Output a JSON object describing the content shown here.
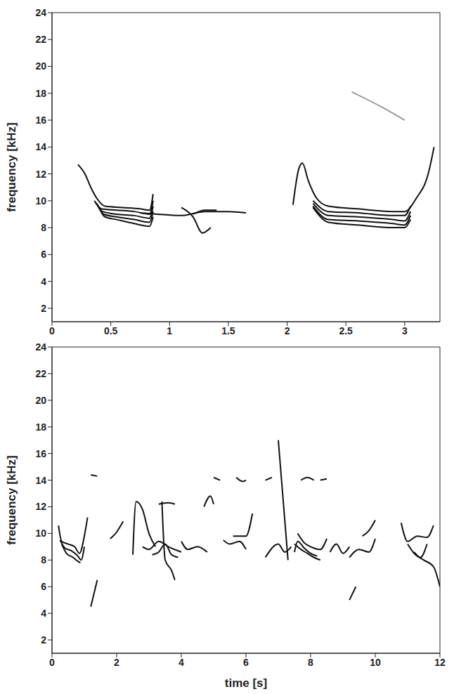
{
  "chart_data": [
    {
      "type": "line",
      "y_label": "frequency [kHz]",
      "xlim": [
        0,
        3.3
      ],
      "ylim": [
        1,
        24
      ],
      "xticks": [
        0,
        0.5,
        1,
        1.5,
        2,
        2.5,
        3
      ],
      "yticks": [
        2,
        4,
        6,
        8,
        10,
        12,
        14,
        16,
        18,
        20,
        22,
        24
      ],
      "color": "#111111",
      "series": [
        {
          "x": [
            0.22,
            0.28,
            0.33,
            0.38,
            0.45,
            0.6,
            0.75,
            0.83,
            0.86
          ],
          "values": [
            12.7,
            12,
            11,
            10.2,
            9.6,
            9.5,
            9.4,
            9.3,
            10.5
          ]
        },
        {
          "x": [
            0.36,
            0.42,
            0.55,
            0.7,
            0.83,
            0.86
          ],
          "values": [
            10,
            9.4,
            9.3,
            9.2,
            9.0,
            10
          ]
        },
        {
          "x": [
            0.37,
            0.43,
            0.55,
            0.7,
            0.83,
            0.86
          ],
          "values": [
            9.9,
            9.2,
            9.0,
            8.9,
            8.7,
            9.6
          ]
        },
        {
          "x": [
            0.38,
            0.44,
            0.55,
            0.7,
            0.83,
            0.86
          ],
          "values": [
            9.8,
            9.0,
            8.8,
            8.6,
            8.4,
            9.2
          ]
        },
        {
          "x": [
            0.39,
            0.45,
            0.55,
            0.7,
            0.83,
            0.86
          ],
          "values": [
            9.7,
            8.8,
            8.6,
            8.3,
            8.1,
            8.8
          ]
        },
        {
          "x": [
            0.75,
            0.9,
            1.1,
            1.3,
            1.5,
            1.65
          ],
          "values": [
            9.1,
            9.0,
            8.9,
            9.2,
            9.2,
            9.1
          ]
        },
        {
          "x": [
            1.1,
            1.2,
            1.28,
            1.35
          ],
          "values": [
            9.5,
            8.8,
            7.6,
            8.0
          ]
        },
        {
          "x": [
            1.2,
            1.3,
            1.4
          ],
          "values": [
            9.0,
            9.3,
            9.3
          ]
        },
        {
          "x": [
            2.05,
            2.1,
            2.13,
            2.18,
            2.25,
            2.35,
            2.6,
            2.9,
            3.0,
            3.1,
            3.2,
            3.25
          ],
          "values": [
            9.7,
            12.4,
            12.8,
            11.5,
            10.2,
            9.6,
            9.4,
            9.2,
            9.2,
            10.2,
            12,
            14
          ]
        },
        {
          "x": [
            2.22,
            2.35,
            2.6,
            2.9,
            3.0,
            3.05
          ],
          "values": [
            10.0,
            9.2,
            9.1,
            8.9,
            8.9,
            9.6
          ]
        },
        {
          "x": [
            2.22,
            2.35,
            2.6,
            2.9,
            3.0,
            3.05
          ],
          "values": [
            9.8,
            8.9,
            8.8,
            8.6,
            8.5,
            9.2
          ]
        },
        {
          "x": [
            2.22,
            2.35,
            2.6,
            2.9,
            3.0,
            3.05
          ],
          "values": [
            9.6,
            8.6,
            8.5,
            8.3,
            8.2,
            8.9
          ]
        },
        {
          "x": [
            2.22,
            2.35,
            2.6,
            2.9,
            3.0,
            3.05
          ],
          "values": [
            9.5,
            8.4,
            8.2,
            8.0,
            8.0,
            8.6
          ]
        },
        {
          "x": [
            2.55,
            2.8,
            3.0
          ],
          "values": [
            18.1,
            17.0,
            16.0
          ],
          "color": "#999999"
        }
      ]
    },
    {
      "type": "line",
      "x_label": "time [s]",
      "y_label": "frequency [kHz]",
      "xlim": [
        0,
        12
      ],
      "ylim": [
        1,
        24
      ],
      "xticks": [
        0,
        2,
        4,
        6,
        8,
        10,
        12
      ],
      "yticks": [
        2,
        4,
        6,
        8,
        10,
        12,
        14,
        16,
        18,
        20,
        22,
        24
      ],
      "color": "#111111",
      "series": [
        {
          "x": [
            0.2,
            0.3,
            0.5,
            0.7,
            0.85,
            1.0,
            1.1
          ],
          "values": [
            10.6,
            9.4,
            9.2,
            9.0,
            8.5,
            9.8,
            11.2
          ]
        },
        {
          "x": [
            0.25,
            0.4,
            0.6,
            0.8,
            0.9,
            1.0
          ],
          "values": [
            9.5,
            8.9,
            8.7,
            8.3,
            8.0,
            9.0
          ]
        },
        {
          "x": [
            0.3,
            0.45,
            0.65,
            0.8,
            0.88
          ],
          "values": [
            9.2,
            8.5,
            8.2,
            7.9,
            7.8
          ]
        },
        {
          "x": [
            1.8,
            2.0,
            2.2
          ],
          "values": [
            9.6,
            10.1,
            10.9
          ]
        },
        {
          "x": [
            2.5,
            2.6,
            2.8,
            3.0,
            3.2
          ],
          "values": [
            8.4,
            12.4,
            11.8,
            10,
            9
          ]
        },
        {
          "x": [
            2.8,
            3.0,
            3.3,
            3.6,
            4.0
          ],
          "values": [
            9.0,
            8.8,
            9.4,
            9.0,
            8.6
          ]
        },
        {
          "x": [
            3.1,
            3.3,
            3.5,
            3.7,
            3.9
          ],
          "values": [
            8.4,
            8.6,
            9.2,
            8.4,
            8.2
          ]
        },
        {
          "x": [
            3.3,
            3.6,
            3.8
          ],
          "values": [
            12.2,
            12.3,
            12.2
          ]
        },
        {
          "x": [
            3.4,
            3.5,
            3.7,
            3.8
          ],
          "values": [
            12.4,
            8,
            7.2,
            6.5
          ]
        },
        {
          "x": [
            4.0,
            4.2,
            4.5,
            4.8
          ],
          "values": [
            9.4,
            8.8,
            9.0,
            8.6
          ]
        },
        {
          "x": [
            4.7,
            4.9,
            5.0
          ],
          "values": [
            12.0,
            12.8,
            12.2
          ]
        },
        {
          "x": [
            5.3,
            5.5,
            5.8,
            6.0
          ],
          "values": [
            9.5,
            9.2,
            9.4,
            8.8
          ]
        },
        {
          "x": [
            5.6,
            5.8,
            6.0,
            6.2
          ],
          "values": [
            9.8,
            9.8,
            9.8,
            11.5
          ]
        },
        {
          "x": [
            5.0,
            5.2
          ],
          "values": [
            14.2,
            14.0
          ]
        },
        {
          "x": [
            5.7,
            5.9,
            6.0
          ],
          "values": [
            14.2,
            13.9,
            14.0
          ]
        },
        {
          "x": [
            1.2,
            1.4
          ],
          "values": [
            14.4,
            14.3
          ]
        },
        {
          "x": [
            6.6,
            7.0,
            7.2,
            7.4
          ],
          "values": [
            8.2,
            9.2,
            8.6,
            9.0
          ]
        },
        {
          "x": [
            7.0,
            7.1,
            7.2,
            7.3
          ],
          "values": [
            17,
            14,
            11,
            8
          ]
        },
        {
          "x": [
            7.5,
            7.6,
            7.8,
            8.0,
            8.2
          ],
          "values": [
            8.6,
            9.4,
            8.9,
            8.5,
            8.3
          ]
        },
        {
          "x": [
            7.5,
            7.7,
            7.9,
            8.1,
            8.3
          ],
          "values": [
            9.2,
            8.8,
            8.5,
            8.2,
            8.0
          ]
        },
        {
          "x": [
            7.6,
            7.8,
            8.0,
            8.3,
            8.5
          ],
          "values": [
            10.0,
            9.3,
            9.0,
            8.8,
            9.6
          ]
        },
        {
          "x": [
            8.6,
            8.8,
            9.0,
            9.2
          ],
          "values": [
            8.6,
            9.2,
            8.5,
            9.0
          ]
        },
        {
          "x": [
            9.2,
            9.5,
            9.8,
            10.0
          ],
          "values": [
            8.2,
            8.8,
            8.6,
            9.6
          ]
        },
        {
          "x": [
            9.6,
            9.8,
            10.0
          ],
          "values": [
            9.8,
            10.2,
            11.0
          ]
        },
        {
          "x": [
            10.8,
            11.0,
            11.3,
            11.6,
            11.8
          ],
          "values": [
            10.8,
            9.4,
            9.8,
            9.7,
            10.6
          ]
        },
        {
          "x": [
            11.0,
            11.2,
            11.5,
            11.8,
            12.0
          ],
          "values": [
            9.2,
            8.5,
            8.0,
            7.5,
            6.0
          ]
        },
        {
          "x": [
            11.2,
            11.4,
            11.6
          ],
          "values": [
            8.6,
            8.2,
            9.2
          ]
        },
        {
          "x": [
            9.2,
            9.4
          ],
          "values": [
            5.0,
            6.0
          ]
        },
        {
          "x": [
            1.2,
            1.4
          ],
          "values": [
            4.5,
            6.5
          ]
        },
        {
          "x": [
            7.7,
            7.9,
            8.1
          ],
          "values": [
            14.0,
            14.2,
            14.0
          ]
        },
        {
          "x": [
            8.3,
            8.5
          ],
          "values": [
            14.0,
            14.1
          ]
        },
        {
          "x": [
            6.6,
            6.8
          ],
          "values": [
            14.0,
            14.2
          ]
        }
      ]
    }
  ]
}
